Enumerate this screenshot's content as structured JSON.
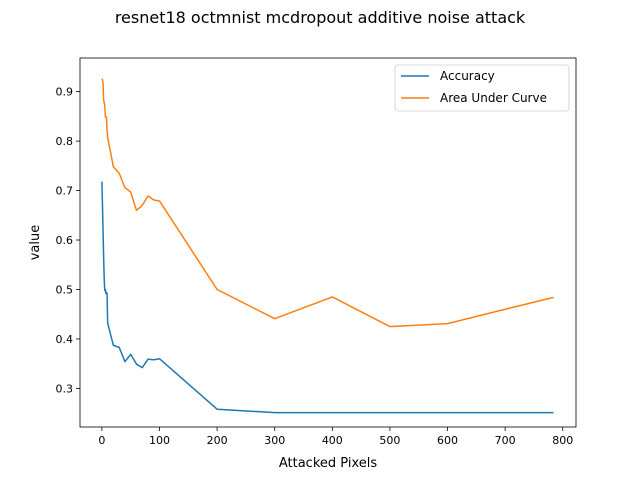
{
  "chart_data": {
    "type": "line",
    "title": "resnet18 octmnist mcdropout additive noise attack",
    "xlabel": "Attacked Pixels",
    "ylabel": "value",
    "xlim": [
      -38,
      823
    ],
    "ylim": [
      0.222,
      0.968
    ],
    "xticks": [
      0,
      100,
      200,
      300,
      400,
      500,
      600,
      700,
      800
    ],
    "xtick_labels": [
      "0",
      "100",
      "200",
      "300",
      "400",
      "500",
      "600",
      "700",
      "800"
    ],
    "yticks": [
      0.3,
      0.4,
      0.5,
      0.6,
      0.7,
      0.8,
      0.9
    ],
    "ytick_labels": [
      "0.3",
      "0.4",
      "0.5",
      "0.6",
      "0.7",
      "0.8",
      "0.9"
    ],
    "grid": false,
    "legend_position": "top-right",
    "series": [
      {
        "name": "Accuracy",
        "color": "#1f77b4",
        "x": [
          0,
          1,
          2,
          3,
          4,
          5,
          6,
          7,
          8,
          9,
          10,
          20,
          30,
          40,
          50,
          60,
          70,
          80,
          90,
          100,
          200,
          300,
          400,
          500,
          600,
          700,
          784
        ],
        "y": [
          0.718,
          0.672,
          0.618,
          0.566,
          0.522,
          0.498,
          0.5,
          0.492,
          0.494,
          0.492,
          0.432,
          0.387,
          0.383,
          0.354,
          0.369,
          0.349,
          0.342,
          0.359,
          0.358,
          0.36,
          0.258,
          0.251,
          0.251,
          0.251,
          0.251,
          0.251,
          0.251
        ]
      },
      {
        "name": "Area Under Curve",
        "color": "#ff7f0e",
        "x": [
          0,
          1,
          2,
          3,
          4,
          5,
          6,
          7,
          8,
          9,
          10,
          20,
          30,
          40,
          50,
          60,
          70,
          80,
          90,
          100,
          200,
          300,
          400,
          500,
          600,
          700,
          784
        ],
        "y": [
          0.926,
          0.924,
          0.918,
          0.883,
          0.878,
          0.872,
          0.849,
          0.848,
          0.849,
          0.821,
          0.807,
          0.748,
          0.735,
          0.706,
          0.697,
          0.66,
          0.67,
          0.689,
          0.681,
          0.679,
          0.5,
          0.441,
          0.485,
          0.425,
          0.431,
          0.46,
          0.484
        ]
      }
    ]
  }
}
